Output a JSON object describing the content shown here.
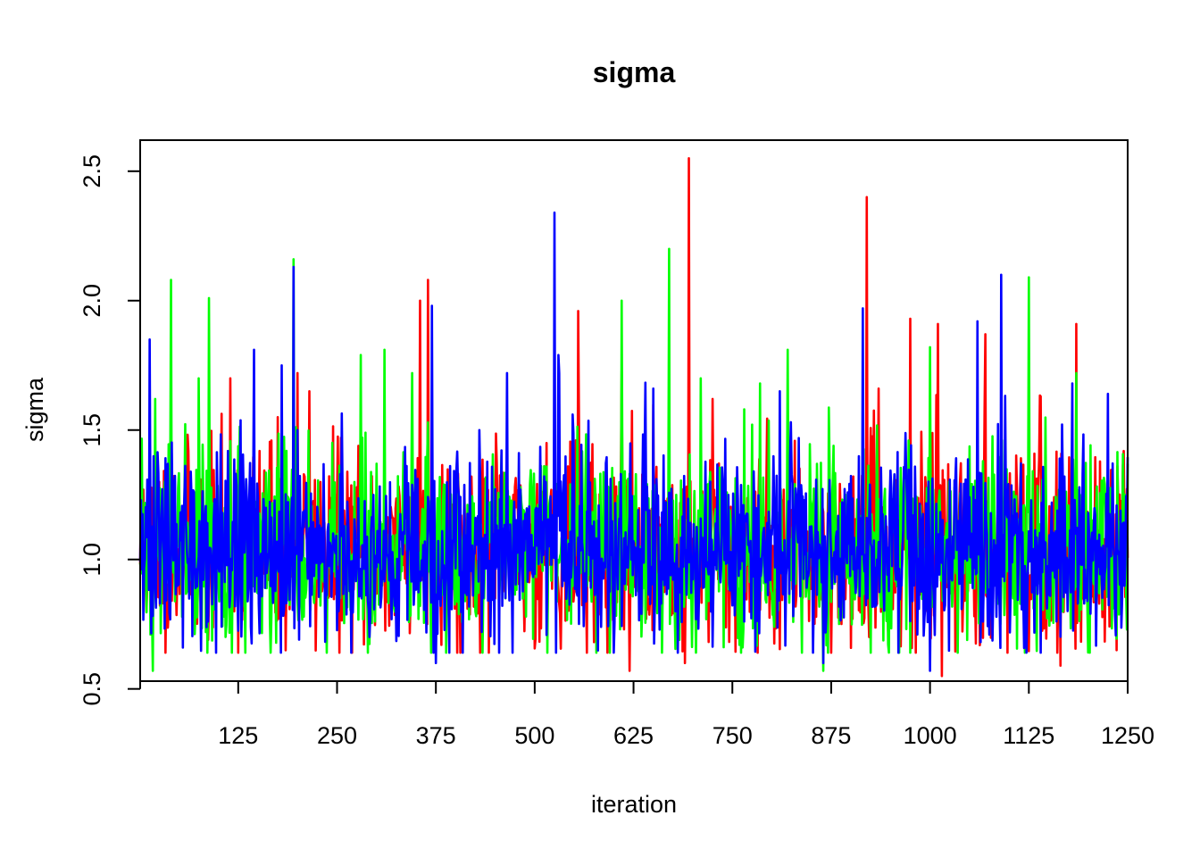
{
  "chart_data": {
    "type": "line",
    "title": "sigma",
    "xlabel": "iteration",
    "ylabel": "sigma",
    "xlim": [
      1,
      1250
    ],
    "ylim": [
      0.53,
      2.62
    ],
    "xticks": [
      125,
      250,
      375,
      500,
      625,
      750,
      875,
      1000,
      1125,
      1250
    ],
    "xtick_labels": [
      "125",
      "250",
      "375",
      "500",
      "625",
      "750",
      "875",
      "1000",
      "1125",
      "1250"
    ],
    "yticks": [
      0.5,
      1.0,
      1.5,
      2.0,
      2.5
    ],
    "ytick_labels": [
      "0.5",
      "1.0",
      "1.5",
      "2.0",
      "2.5"
    ],
    "grid": false,
    "n_iterations": 1250,
    "series": [
      {
        "color": "#ff0000",
        "base": 1.03,
        "sd": 0.17,
        "seed": 11,
        "peaks": [
          [
            5,
            1.27
          ],
          [
            25,
            1.3
          ],
          [
            60,
            1.1
          ],
          [
            115,
            1.7
          ],
          [
            175,
            1.55
          ],
          [
            200,
            1.72
          ],
          [
            215,
            1.65
          ],
          [
            255,
            1.47
          ],
          [
            355,
            2.0
          ],
          [
            365,
            2.08
          ],
          [
            515,
            1.45
          ],
          [
            555,
            1.96
          ],
          [
            610,
            1.73
          ],
          [
            620,
            0.57
          ],
          [
            690,
            0.6
          ],
          [
            695,
            2.55
          ],
          [
            725,
            1.62
          ],
          [
            920,
            2.4
          ],
          [
            935,
            1.66
          ],
          [
            975,
            1.93
          ],
          [
            1015,
            0.55
          ],
          [
            1010,
            1.91
          ],
          [
            1070,
            1.87
          ],
          [
            1140,
            1.63
          ],
          [
            1165,
            0.59
          ],
          [
            1185,
            1.91
          ]
        ]
      },
      {
        "color": "#00ff00",
        "base": 1.03,
        "sd": 0.17,
        "seed": 22,
        "peaks": [
          [
            17,
            0.57
          ],
          [
            20,
            1.62
          ],
          [
            40,
            2.08
          ],
          [
            75,
            1.7
          ],
          [
            88,
            2.01
          ],
          [
            195,
            2.16
          ],
          [
            280,
            1.79
          ],
          [
            310,
            1.81
          ],
          [
            345,
            1.72
          ],
          [
            610,
            2.0
          ],
          [
            670,
            2.2
          ],
          [
            710,
            1.7
          ],
          [
            765,
            1.58
          ],
          [
            785,
            1.68
          ],
          [
            820,
            1.81
          ],
          [
            865,
            0.57
          ],
          [
            1000,
            1.82
          ],
          [
            1125,
            2.09
          ],
          [
            1185,
            1.72
          ],
          [
            1250,
            1.37
          ]
        ]
      },
      {
        "color": "#0000ff",
        "base": 1.03,
        "sd": 0.17,
        "seed": 33,
        "peaks": [
          [
            13,
            1.85
          ],
          [
            55,
            0.66
          ],
          [
            145,
            1.81
          ],
          [
            180,
            1.75
          ],
          [
            195,
            2.13
          ],
          [
            200,
            1.5
          ],
          [
            370,
            1.98
          ],
          [
            375,
            0.6
          ],
          [
            430,
            1.5
          ],
          [
            465,
            1.72
          ],
          [
            525,
            2.34
          ],
          [
            530,
            1.79
          ],
          [
            650,
            1.66
          ],
          [
            810,
            1.65
          ],
          [
            865,
            0.6
          ],
          [
            915,
            1.97
          ],
          [
            1000,
            0.57
          ],
          [
            1060,
            1.92
          ],
          [
            1075,
            0.71
          ],
          [
            1090,
            2.1
          ],
          [
            1180,
            1.68
          ],
          [
            1225,
            1.64
          ]
        ]
      }
    ]
  }
}
